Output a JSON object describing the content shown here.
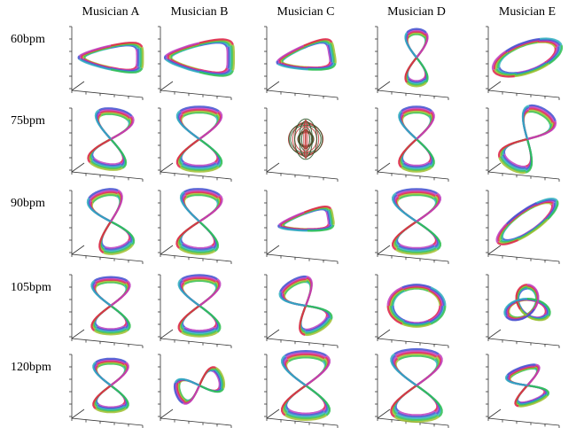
{
  "columns": [
    "Musician A",
    "Musician B",
    "Musician C",
    "Musician D",
    "Musician E"
  ],
  "rows": [
    "60bpm",
    "75bpm",
    "90bpm",
    "105bpm",
    "120bpm"
  ]
}
